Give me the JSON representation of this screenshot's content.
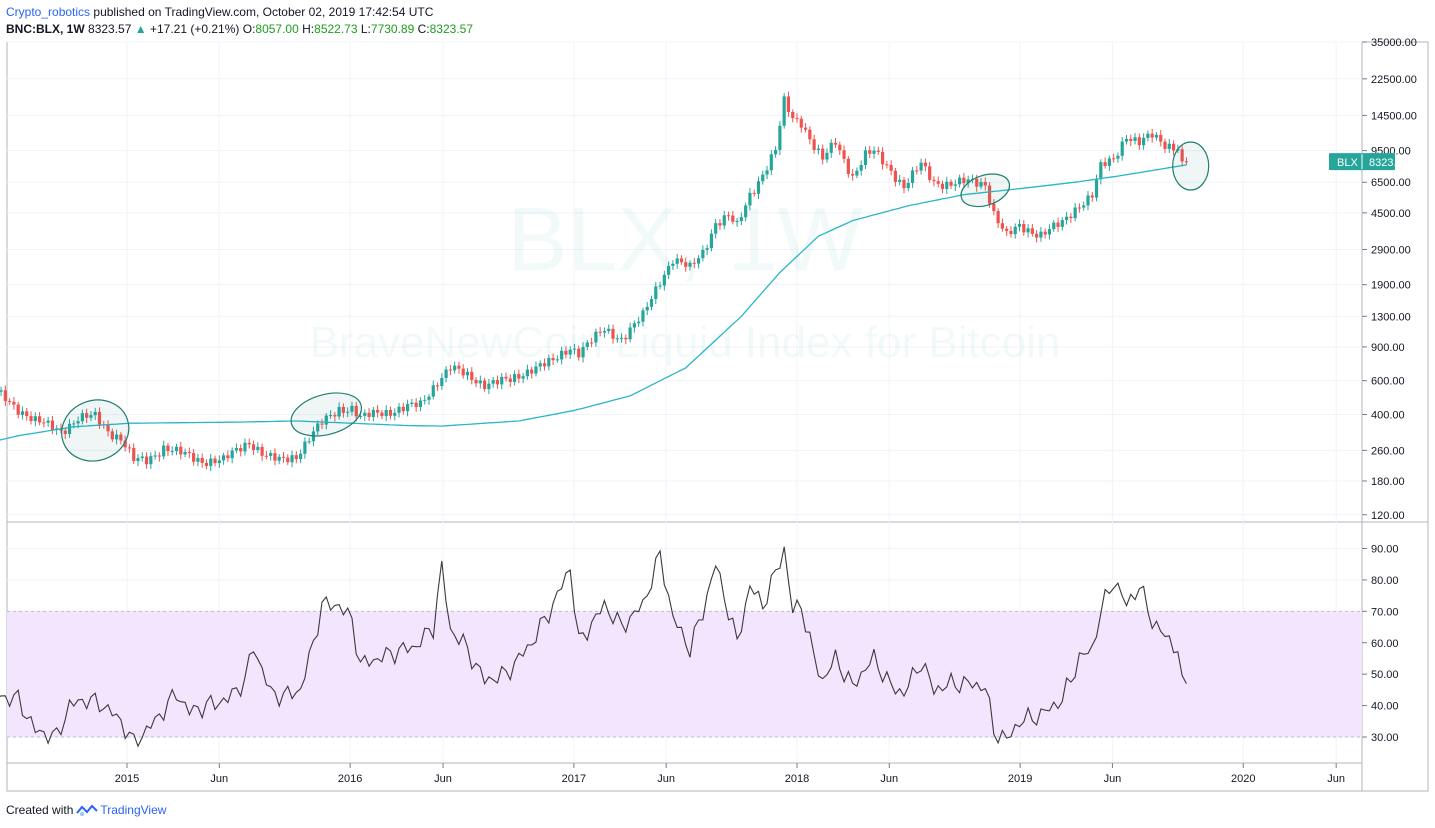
{
  "header": {
    "author": "Crypto_robotics",
    "published": "published on TradingView.com, October 02, 2019 17:42:54 UTC",
    "symbol": "BNC:BLX, 1W",
    "last": "8323.57",
    "change_arrow": "▲",
    "change": "+17.21 (+0.21%)",
    "o_label": "O:",
    "o_value": "8057.00",
    "h_label": "H:",
    "h_value": "8522.73",
    "l_label": "L:",
    "l_value": "7730.89",
    "c_label": "C:",
    "c_value": "8323.57"
  },
  "watermark": {
    "symbol": "BLX, 1W",
    "description": "BraveNewCoin Liquid Index for Bitcoin"
  },
  "colors": {
    "up": "#26a69a",
    "down": "#ef5350",
    "ma": "#29b6c8",
    "rsi_line": "#3a3a3a",
    "rsi_band": "#f3e5fd",
    "ellipse": "#1e7f6e",
    "price_tag": "#26a69a"
  },
  "price_tag": {
    "symbol": "BLX",
    "value": "8323.57"
  },
  "footer": {
    "created_with": "Created with",
    "brand": "TradingView"
  },
  "chart_data": [
    {
      "type": "candlestick",
      "title": "BNC:BLX, 1W",
      "scale": "log",
      "ylim": [
        110,
        35000
      ],
      "y_ticks": [
        "35000.00",
        "22500.00",
        "14500.00",
        "9500.00",
        "6500.00",
        "4500.00",
        "2900.00",
        "1900.00",
        "1300.00",
        "900.00",
        "600.00",
        "400.00",
        "260.00",
        "180.00",
        "120.00"
      ],
      "x_ticks": [
        "2015",
        "Jun",
        "2016",
        "Jun",
        "2017",
        "Jun",
        "2018",
        "Jun",
        "2019",
        "Jun",
        "2020",
        "Jun"
      ],
      "price_anchors": [
        [
          "2014-04-07",
          650
        ],
        [
          "2014-05-05",
          600
        ],
        [
          "2014-06-02",
          520
        ],
        [
          "2014-07-07",
          430
        ],
        [
          "2014-08-04",
          370
        ],
        [
          "2014-09-15",
          330
        ],
        [
          "2014-10-13",
          380
        ],
        [
          "2014-11-10",
          390
        ],
        [
          "2014-12-01",
          330
        ],
        [
          "2014-12-22",
          300
        ],
        [
          "2015-01-12",
          230
        ],
        [
          "2015-02-02",
          230
        ],
        [
          "2015-03-02",
          270
        ],
        [
          "2015-03-30",
          250
        ],
        [
          "2015-05-04",
          230
        ],
        [
          "2015-06-08",
          230
        ],
        [
          "2015-07-06",
          270
        ],
        [
          "2015-07-20",
          290
        ],
        [
          "2015-08-17",
          240
        ],
        [
          "2015-09-07",
          230
        ],
        [
          "2015-10-05",
          245
        ],
        [
          "2015-10-26",
          300
        ],
        [
          "2015-11-16",
          360
        ],
        [
          "2015-12-14",
          430
        ],
        [
          "2016-01-04",
          430
        ],
        [
          "2016-01-18",
          380
        ],
        [
          "2016-02-15",
          410
        ],
        [
          "2016-03-14",
          420
        ],
        [
          "2016-04-25",
          450
        ],
        [
          "2016-05-23",
          600
        ],
        [
          "2016-06-13",
          700
        ],
        [
          "2016-07-04",
          650
        ],
        [
          "2016-08-08",
          580
        ],
        [
          "2016-09-19",
          600
        ],
        [
          "2016-10-24",
          700
        ],
        [
          "2016-11-28",
          750
        ],
        [
          "2016-12-26",
          900
        ],
        [
          "2017-01-09",
          850
        ],
        [
          "2017-02-20",
          1100
        ],
        [
          "2017-03-20",
          1000
        ],
        [
          "2017-04-24",
          1300
        ],
        [
          "2017-05-22",
          2000
        ],
        [
          "2017-06-12",
          2600
        ],
        [
          "2017-07-10",
          2300
        ],
        [
          "2017-07-31",
          2800
        ],
        [
          "2017-08-21",
          4000
        ],
        [
          "2017-09-11",
          4300
        ],
        [
          "2017-09-25",
          3800
        ],
        [
          "2017-10-16",
          5600
        ],
        [
          "2017-11-06",
          7200
        ],
        [
          "2017-11-27",
          9500
        ],
        [
          "2017-12-11",
          17000
        ],
        [
          "2017-12-25",
          14000
        ],
        [
          "2018-01-08",
          13500
        ],
        [
          "2018-01-29",
          10000
        ],
        [
          "2018-02-12",
          8500
        ],
        [
          "2018-03-05",
          10500
        ],
        [
          "2018-04-02",
          7000
        ],
        [
          "2018-04-23",
          9000
        ],
        [
          "2018-05-07",
          9300
        ],
        [
          "2018-06-04",
          7500
        ],
        [
          "2018-06-25",
          6200
        ],
        [
          "2018-07-23",
          8000
        ],
        [
          "2018-08-13",
          6500
        ],
        [
          "2018-09-10",
          6400
        ],
        [
          "2018-10-08",
          6500
        ],
        [
          "2018-11-05",
          6400
        ],
        [
          "2018-11-19",
          4500
        ],
        [
          "2018-12-10",
          3400
        ],
        [
          "2018-12-31",
          3800
        ],
        [
          "2019-02-04",
          3500
        ],
        [
          "2019-03-11",
          3950
        ],
        [
          "2019-04-08",
          5000
        ],
        [
          "2019-04-29",
          5600
        ],
        [
          "2019-05-13",
          7800
        ],
        [
          "2019-06-03",
          8500
        ],
        [
          "2019-06-24",
          11500
        ],
        [
          "2019-07-15",
          10500
        ],
        [
          "2019-08-05",
          11300
        ],
        [
          "2019-08-26",
          10200
        ],
        [
          "2019-09-16",
          10000
        ],
        [
          "2019-09-23",
          8100
        ],
        [
          "2019-09-30",
          8323.57
        ]
      ],
      "ma_anchors": [
        [
          "2014-04-07",
          265
        ],
        [
          "2014-07-07",
          310
        ],
        [
          "2014-10-06",
          345
        ],
        [
          "2015-01-05",
          360
        ],
        [
          "2015-07-06",
          365
        ],
        [
          "2015-10-05",
          370
        ],
        [
          "2016-01-04",
          360
        ],
        [
          "2016-04-04",
          350
        ],
        [
          "2016-05-30",
          348
        ],
        [
          "2016-10-03",
          370
        ],
        [
          "2017-01-02",
          420
        ],
        [
          "2017-04-03",
          500
        ],
        [
          "2017-07-03",
          700
        ],
        [
          "2017-10-02",
          1300
        ],
        [
          "2017-12-04",
          2200
        ],
        [
          "2018-02-05",
          3400
        ],
        [
          "2018-04-02",
          4100
        ],
        [
          "2018-07-02",
          4900
        ],
        [
          "2018-10-01",
          5600
        ],
        [
          "2019-01-07",
          6050
        ],
        [
          "2019-04-01",
          6500
        ],
        [
          "2019-06-10",
          7000
        ],
        [
          "2019-09-30",
          8000
        ]
      ],
      "annotations": [
        "ellipse 2014-11",
        "ellipse 2015-11",
        "ellipse 2018-11",
        "ellipse 2019-10"
      ]
    },
    {
      "type": "line",
      "title": "RSI",
      "ylim": [
        25,
        95
      ],
      "y_ticks": [
        "90.00",
        "80.00",
        "70.00",
        "60.00",
        "50.00",
        "40.00",
        "30.00"
      ],
      "band": [
        30,
        70
      ],
      "series": [
        {
          "values_anchors": [
            [
              "2014-04-07",
              55
            ],
            [
              "2014-05-05",
              57
            ],
            [
              "2014-06-02",
              43
            ],
            [
              "2014-07-07",
              42
            ],
            [
              "2014-08-04",
              32
            ],
            [
              "2014-09-08",
              30
            ],
            [
              "2014-09-29",
              40
            ],
            [
              "2014-10-27",
              42
            ],
            [
              "2014-11-24",
              40
            ],
            [
              "2014-12-22",
              35
            ],
            [
              "2015-01-12",
              28
            ],
            [
              "2015-02-16",
              35
            ],
            [
              "2015-03-23",
              44
            ],
            [
              "2015-04-13",
              38
            ],
            [
              "2015-05-11",
              40
            ],
            [
              "2015-06-15",
              42
            ],
            [
              "2015-07-13",
              48
            ],
            [
              "2015-07-27",
              59
            ],
            [
              "2015-08-24",
              44
            ],
            [
              "2015-09-14",
              43
            ],
            [
              "2015-10-12",
              45
            ],
            [
              "2015-11-02",
              60
            ],
            [
              "2015-11-16",
              72
            ],
            [
              "2015-12-14",
              72
            ],
            [
              "2016-01-04",
              67
            ],
            [
              "2016-01-18",
              53
            ],
            [
              "2016-02-15",
              55
            ],
            [
              "2016-03-14",
              57
            ],
            [
              "2016-04-18",
              59
            ],
            [
              "2016-05-16",
              65
            ],
            [
              "2016-05-30",
              84
            ],
            [
              "2016-06-13",
              64
            ],
            [
              "2016-07-04",
              60
            ],
            [
              "2016-08-08",
              48
            ],
            [
              "2016-09-12",
              50
            ],
            [
              "2016-10-24",
              60
            ],
            [
              "2016-11-28",
              72
            ],
            [
              "2016-12-26",
              84
            ],
            [
              "2017-01-09",
              60
            ],
            [
              "2017-02-20",
              72
            ],
            [
              "2017-03-20",
              65
            ],
            [
              "2017-04-24",
              72
            ],
            [
              "2017-05-22",
              88
            ],
            [
              "2017-06-12",
              68
            ],
            [
              "2017-07-10",
              58
            ],
            [
              "2017-07-31",
              70
            ],
            [
              "2017-08-21",
              85
            ],
            [
              "2017-09-11",
              70
            ],
            [
              "2017-09-25",
              60
            ],
            [
              "2017-10-16",
              78
            ],
            [
              "2017-11-06",
              72
            ],
            [
              "2017-11-27",
              82
            ],
            [
              "2017-12-11",
              90
            ],
            [
              "2017-12-25",
              70
            ],
            [
              "2018-01-08",
              72
            ],
            [
              "2018-01-29",
              55
            ],
            [
              "2018-02-12",
              48
            ],
            [
              "2018-03-05",
              55
            ],
            [
              "2018-04-02",
              46
            ],
            [
              "2018-04-23",
              52
            ],
            [
              "2018-05-07",
              55
            ],
            [
              "2018-06-04",
              46
            ],
            [
              "2018-06-25",
              44
            ],
            [
              "2018-07-23",
              54
            ],
            [
              "2018-08-13",
              45
            ],
            [
              "2018-09-10",
              47
            ],
            [
              "2018-10-08",
              47
            ],
            [
              "2018-11-05",
              46
            ],
            [
              "2018-11-19",
              32
            ],
            [
              "2018-12-10",
              29
            ],
            [
              "2018-12-31",
              35
            ],
            [
              "2019-02-04",
              37
            ],
            [
              "2019-03-11",
              42
            ],
            [
              "2019-04-08",
              55
            ],
            [
              "2019-04-29",
              58
            ],
            [
              "2019-05-13",
              70
            ],
            [
              "2019-06-03",
              80
            ],
            [
              "2019-06-24",
              72
            ],
            [
              "2019-07-15",
              78
            ],
            [
              "2019-08-05",
              67
            ],
            [
              "2019-08-26",
              62
            ],
            [
              "2019-09-16",
              58
            ],
            [
              "2019-09-23",
              46
            ],
            [
              "2019-09-30",
              47
            ]
          ]
        }
      ]
    }
  ]
}
